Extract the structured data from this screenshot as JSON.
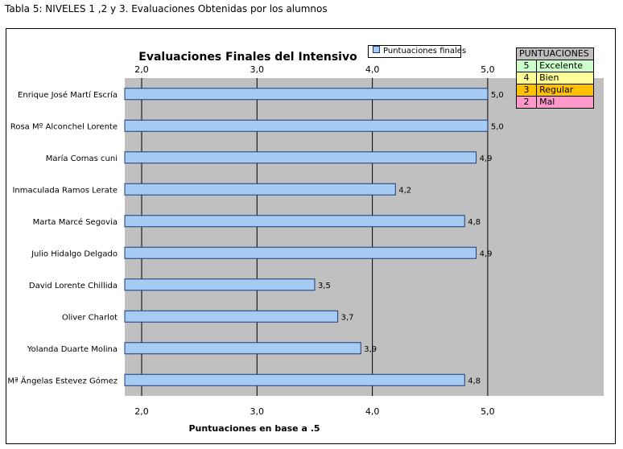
{
  "caption": "Tabla 5: NIVELES 1 ,2 y 3. Evaluaciones Obtenidas por los alumnos",
  "score_table": {
    "header": "PUNTUACIONES",
    "rows": [
      {
        "num": "5",
        "label": "Excelente",
        "color": "#ccffcc"
      },
      {
        "num": "4",
        "label": "Bien",
        "color": "#ffff99"
      },
      {
        "num": "3",
        "label": "Regular",
        "color": "#ffc000"
      },
      {
        "num": "2",
        "label": "Mal",
        "color": "#ff99cc"
      }
    ]
  },
  "colors": {
    "plot_bg": "#c0c0c0",
    "bar_fill": "#a7ccf3",
    "bar_stroke": "#1a3a7a"
  },
  "chart_data": {
    "type": "bar",
    "orientation": "horizontal",
    "title": "Evaluaciones Finales del Intensivo",
    "xlabel": "Puntuaciones en base a .5",
    "ylabel": "",
    "xlim": [
      1.85,
      6.0
    ],
    "ticks": [
      2.0,
      3.0,
      4.0,
      5.0
    ],
    "tick_labels": [
      "2,0",
      "3,0",
      "4,0",
      "5,0"
    ],
    "tick_positions": "top and bottom",
    "grid": "vertical lines at ticks",
    "legend": "top-right",
    "categories": [
      "Enrique José Martí Escría",
      "Rosa Mº Alconchel Lorente",
      "María Comas cuni",
      "Inmaculada Ramos Lerate",
      "Marta Marcé Segovia",
      "Julio Hidalgo Delgado",
      "David Lorente Chillida",
      "Oliver Charlot",
      "Yolanda Duarte Molina",
      "Mª Ängelas Estevez Gómez"
    ],
    "series": [
      {
        "name": "Puntuaciones finales",
        "values": [
          5.0,
          5.0,
          4.9,
          4.2,
          4.8,
          4.9,
          3.5,
          3.7,
          3.9,
          4.8
        ],
        "value_labels": [
          "5,0",
          "5,0",
          "4,9",
          "4,2",
          "4,8",
          "4,9",
          "3,5",
          "3,7",
          "3,9",
          "4,8"
        ]
      }
    ]
  }
}
